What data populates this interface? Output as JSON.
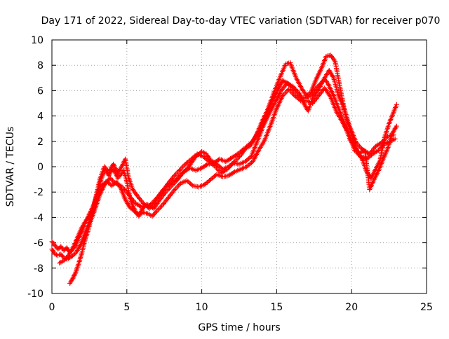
{
  "chart_data": {
    "type": "scatter",
    "title": "Day 171 of 2022, Sidereal Day-to-day VTEC variation (SDTVAR) for receiver p070",
    "xlabel": "GPS time / hours",
    "ylabel": "SDTVAR / TECUs",
    "xlim": [
      0,
      25
    ],
    "ylim": [
      -10,
      10
    ],
    "xticks": [
      0,
      5,
      10,
      15,
      20,
      25
    ],
    "yticks": [
      -10,
      -8,
      -6,
      -4,
      -2,
      0,
      2,
      4,
      6,
      8,
      10
    ],
    "grid": true,
    "legend": "none",
    "marker": "+",
    "color": "#ff0000",
    "series": [
      {
        "points": [
          [
            0.0,
            -5.9
          ],
          [
            0.2,
            -6.2
          ],
          [
            0.4,
            -6.5
          ],
          [
            0.6,
            -6.3
          ],
          [
            0.8,
            -6.6
          ],
          [
            1.0,
            -6.4
          ],
          [
            1.2,
            -6.8
          ],
          [
            1.4,
            -6.5
          ],
          [
            1.6,
            -6.2
          ],
          [
            1.8,
            -5.6
          ],
          [
            2.0,
            -5.1
          ],
          [
            2.2,
            -4.5
          ],
          [
            2.4,
            -4.0
          ],
          [
            2.6,
            -3.5
          ],
          [
            2.8,
            -3.0
          ],
          [
            3.0,
            -2.2
          ],
          [
            3.2,
            -1.3
          ],
          [
            3.4,
            -0.6
          ],
          [
            3.6,
            -0.3
          ],
          [
            3.8,
            -0.7
          ],
          [
            4.0,
            -0.2
          ],
          [
            4.2,
            -0.4
          ],
          [
            4.4,
            -0.9
          ],
          [
            4.6,
            -0.6
          ],
          [
            4.8,
            -0.3
          ],
          [
            5.0,
            -1.2
          ],
          [
            5.2,
            -2.4
          ],
          [
            5.4,
            -3.1
          ],
          [
            5.6,
            -3.6
          ],
          [
            5.8,
            -3.9
          ],
          [
            6.0,
            -3.4
          ],
          [
            6.2,
            -3.0
          ],
          [
            6.5,
            -3.3
          ],
          [
            6.8,
            -2.9
          ],
          [
            7.0,
            -2.5
          ],
          [
            7.3,
            -2.0
          ],
          [
            7.6,
            -1.6
          ],
          [
            8.0,
            -1.3
          ],
          [
            8.3,
            -1.0
          ],
          [
            8.6,
            -0.6
          ],
          [
            9.0,
            -0.2
          ],
          [
            9.3,
            0.3
          ],
          [
            9.6,
            0.8
          ],
          [
            10.0,
            1.2
          ],
          [
            10.3,
            1.0
          ],
          [
            10.6,
            0.5
          ],
          [
            11.0,
            0.2
          ],
          [
            11.4,
            -0.2
          ],
          [
            11.8,
            0.0
          ],
          [
            12.2,
            0.4
          ],
          [
            12.6,
            0.9
          ],
          [
            13.0,
            1.6
          ],
          [
            13.4,
            2.0
          ],
          [
            13.8,
            2.8
          ],
          [
            14.2,
            3.8
          ],
          [
            14.6,
            4.9
          ],
          [
            15.0,
            5.9
          ],
          [
            15.4,
            6.8
          ],
          [
            15.8,
            6.5
          ],
          [
            16.2,
            6.0
          ],
          [
            16.6,
            5.5
          ],
          [
            17.0,
            5.4
          ],
          [
            17.4,
            5.8
          ],
          [
            17.8,
            6.4
          ],
          [
            18.2,
            6.9
          ],
          [
            18.4,
            6.6
          ],
          [
            18.8,
            5.6
          ],
          [
            19.2,
            4.4
          ],
          [
            19.6,
            3.1
          ],
          [
            19.9,
            2.1
          ],
          [
            20.2,
            1.6
          ],
          [
            20.5,
            1.0
          ],
          [
            20.8,
            1.3
          ],
          [
            21.2,
            1.0
          ],
          [
            21.6,
            1.6
          ],
          [
            22.0,
            1.9
          ],
          [
            22.4,
            2.4
          ],
          [
            22.8,
            2.5
          ]
        ]
      },
      {
        "points": [
          [
            0.0,
            -6.5
          ],
          [
            0.2,
            -6.9
          ],
          [
            0.4,
            -7.0
          ],
          [
            0.6,
            -6.9
          ],
          [
            0.8,
            -7.2
          ],
          [
            1.0,
            -7.3
          ],
          [
            1.3,
            -7.1
          ],
          [
            1.6,
            -6.8
          ],
          [
            1.9,
            -6.2
          ],
          [
            2.2,
            -5.3
          ],
          [
            2.5,
            -4.4
          ],
          [
            2.8,
            -3.3
          ],
          [
            3.1,
            -1.9
          ],
          [
            3.4,
            -1.4
          ],
          [
            3.7,
            -1.2
          ],
          [
            4.0,
            -1.5
          ],
          [
            4.3,
            -1.2
          ],
          [
            4.6,
            -1.7
          ],
          [
            4.9,
            -2.6
          ],
          [
            5.2,
            -3.2
          ],
          [
            5.5,
            -3.5
          ],
          [
            5.8,
            -3.8
          ],
          [
            6.1,
            -3.6
          ],
          [
            6.4,
            -3.7
          ],
          [
            6.7,
            -3.9
          ],
          [
            7.0,
            -3.5
          ],
          [
            7.4,
            -3.0
          ],
          [
            7.8,
            -2.4
          ],
          [
            8.2,
            -1.8
          ],
          [
            8.6,
            -1.3
          ],
          [
            9.0,
            -1.1
          ],
          [
            9.4,
            -1.5
          ],
          [
            9.8,
            -1.6
          ],
          [
            10.2,
            -1.4
          ],
          [
            10.6,
            -1.0
          ],
          [
            11.0,
            -0.6
          ],
          [
            11.4,
            -0.8
          ],
          [
            11.8,
            -0.7
          ],
          [
            12.2,
            -0.4
          ],
          [
            12.6,
            -0.2
          ],
          [
            13.0,
            0.0
          ],
          [
            13.4,
            0.4
          ],
          [
            13.8,
            1.3
          ],
          [
            14.2,
            2.1
          ],
          [
            14.6,
            3.3
          ],
          [
            15.0,
            4.6
          ],
          [
            15.4,
            5.6
          ],
          [
            15.8,
            6.1
          ],
          [
            16.2,
            5.6
          ],
          [
            16.6,
            5.2
          ],
          [
            17.0,
            5.2
          ],
          [
            17.4,
            5.0
          ],
          [
            17.8,
            5.6
          ],
          [
            18.2,
            6.2
          ],
          [
            18.6,
            5.5
          ],
          [
            19.0,
            4.3
          ],
          [
            19.4,
            3.5
          ],
          [
            19.8,
            2.6
          ],
          [
            20.2,
            1.3
          ],
          [
            20.6,
            0.8
          ],
          [
            21.0,
            0.6
          ],
          [
            21.4,
            1.0
          ],
          [
            21.8,
            1.3
          ],
          [
            22.2,
            1.8
          ],
          [
            22.6,
            2.0
          ],
          [
            22.9,
            2.2
          ]
        ]
      },
      {
        "points": [
          [
            1.2,
            -9.2
          ],
          [
            1.4,
            -8.8
          ],
          [
            1.6,
            -8.3
          ],
          [
            1.8,
            -7.6
          ],
          [
            2.0,
            -6.8
          ],
          [
            2.2,
            -5.8
          ],
          [
            2.4,
            -5.1
          ],
          [
            2.6,
            -4.2
          ],
          [
            2.8,
            -3.6
          ],
          [
            3.0,
            -2.9
          ],
          [
            3.2,
            -2.2
          ],
          [
            3.4,
            -1.7
          ],
          [
            3.6,
            -1.2
          ],
          [
            3.9,
            -0.9
          ],
          [
            4.2,
            -1.3
          ],
          [
            4.6,
            -1.5
          ],
          [
            5.0,
            -2.0
          ],
          [
            5.3,
            -2.5
          ],
          [
            5.6,
            -2.9
          ],
          [
            6.0,
            -3.2
          ],
          [
            6.4,
            -3.0
          ],
          [
            6.8,
            -3.3
          ],
          [
            7.2,
            -2.6
          ],
          [
            7.6,
            -2.0
          ],
          [
            8.0,
            -1.5
          ],
          [
            8.4,
            -1.0
          ],
          [
            8.8,
            -0.4
          ],
          [
            9.2,
            -0.1
          ],
          [
            9.6,
            -0.3
          ],
          [
            10.0,
            -0.1
          ],
          [
            10.4,
            0.2
          ],
          [
            10.8,
            0.3
          ],
          [
            11.2,
            0.6
          ],
          [
            11.6,
            0.4
          ],
          [
            12.0,
            0.7
          ],
          [
            12.4,
            1.0
          ],
          [
            12.8,
            1.4
          ],
          [
            13.2,
            1.6
          ],
          [
            13.6,
            2.4
          ],
          [
            14.0,
            3.5
          ],
          [
            14.4,
            4.5
          ],
          [
            14.8,
            5.8
          ],
          [
            15.2,
            7.0
          ],
          [
            15.6,
            8.1
          ],
          [
            15.9,
            8.2
          ],
          [
            16.3,
            7.0
          ],
          [
            16.7,
            6.1
          ],
          [
            17.0,
            5.6
          ],
          [
            17.3,
            5.9
          ],
          [
            17.6,
            6.8
          ],
          [
            18.0,
            7.8
          ],
          [
            18.3,
            8.7
          ],
          [
            18.6,
            8.8
          ],
          [
            18.9,
            8.3
          ],
          [
            19.2,
            6.4
          ],
          [
            19.5,
            4.6
          ],
          [
            19.8,
            3.4
          ],
          [
            20.1,
            2.2
          ],
          [
            20.4,
            1.1
          ],
          [
            20.7,
            0.6
          ],
          [
            21.0,
            -0.4
          ],
          [
            21.3,
            -0.9
          ],
          [
            21.6,
            -0.2
          ],
          [
            21.9,
            0.5
          ],
          [
            22.2,
            2.3
          ],
          [
            22.5,
            3.4
          ],
          [
            22.8,
            4.3
          ],
          [
            23.0,
            4.9
          ]
        ]
      },
      {
        "points": [
          [
            0.5,
            -7.6
          ],
          [
            0.8,
            -7.4
          ],
          [
            1.1,
            -7.0
          ],
          [
            1.4,
            -6.4
          ],
          [
            1.7,
            -5.6
          ],
          [
            2.0,
            -4.8
          ],
          [
            2.3,
            -4.2
          ],
          [
            2.6,
            -3.8
          ],
          [
            2.9,
            -2.6
          ],
          [
            3.2,
            -1.0
          ],
          [
            3.5,
            0.0
          ],
          [
            3.8,
            -0.4
          ],
          [
            4.1,
            0.2
          ],
          [
            4.4,
            -0.5
          ],
          [
            4.7,
            0.1
          ],
          [
            4.9,
            0.6
          ],
          [
            5.1,
            -0.8
          ],
          [
            5.4,
            -1.8
          ],
          [
            5.7,
            -2.3
          ],
          [
            6.1,
            -2.9
          ],
          [
            6.5,
            -3.1
          ],
          [
            6.9,
            -2.6
          ],
          [
            7.3,
            -2.1
          ],
          [
            7.7,
            -1.4
          ],
          [
            8.1,
            -0.8
          ],
          [
            8.5,
            -0.3
          ],
          [
            8.9,
            0.2
          ],
          [
            9.3,
            0.6
          ],
          [
            9.7,
            1.0
          ],
          [
            10.1,
            0.8
          ],
          [
            10.5,
            0.4
          ],
          [
            10.9,
            0.0
          ],
          [
            11.3,
            -0.5
          ],
          [
            11.7,
            -0.2
          ],
          [
            12.1,
            0.3
          ],
          [
            12.5,
            0.2
          ],
          [
            12.9,
            0.4
          ],
          [
            13.3,
            0.8
          ],
          [
            13.7,
            2.0
          ],
          [
            14.1,
            3.2
          ],
          [
            14.5,
            4.2
          ],
          [
            14.9,
            5.1
          ],
          [
            15.3,
            6.0
          ],
          [
            15.7,
            6.6
          ],
          [
            16.1,
            6.3
          ],
          [
            16.5,
            5.8
          ],
          [
            16.9,
            4.8
          ],
          [
            17.1,
            4.4
          ],
          [
            17.4,
            5.4
          ],
          [
            17.8,
            6.1
          ],
          [
            18.1,
            6.8
          ],
          [
            18.5,
            7.6
          ],
          [
            18.8,
            7.0
          ],
          [
            19.1,
            5.7
          ],
          [
            19.4,
            4.9
          ],
          [
            19.7,
            3.6
          ],
          [
            20.0,
            2.8
          ],
          [
            20.3,
            1.9
          ],
          [
            20.6,
            1.5
          ],
          [
            20.9,
            1.2
          ],
          [
            21.2,
            -1.8
          ],
          [
            21.5,
            -1.0
          ],
          [
            21.8,
            -0.3
          ],
          [
            22.1,
            0.6
          ],
          [
            22.4,
            1.4
          ],
          [
            22.7,
            2.6
          ],
          [
            23.0,
            3.2
          ]
        ]
      }
    ]
  }
}
